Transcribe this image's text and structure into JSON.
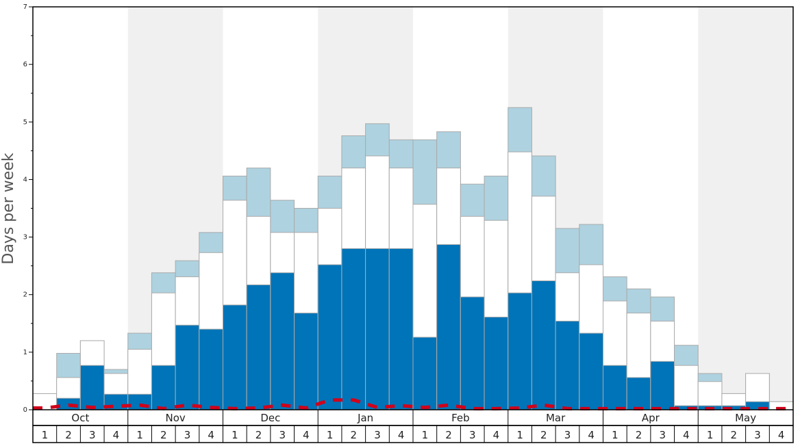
{
  "chart_data": {
    "type": "bar",
    "ylabel": "Days per week",
    "ylim": [
      0,
      7
    ],
    "y_ticks": [
      0,
      1,
      2,
      3,
      4,
      5,
      6,
      7
    ],
    "months": [
      "Oct",
      "Nov",
      "Dec",
      "Jan",
      "Feb",
      "Mar",
      "Apr",
      "May"
    ],
    "week_labels": [
      "1",
      "2",
      "3",
      "4",
      "1",
      "2",
      "3",
      "4",
      "1",
      "2",
      "3",
      "4",
      "1",
      "2",
      "3",
      "4",
      "1",
      "2",
      "3",
      "4",
      "1",
      "2",
      "3",
      "4",
      "1",
      "2",
      "3",
      "4",
      "1",
      "2",
      "3",
      "4"
    ],
    "colors": {
      "dark_blue": "#0074b8",
      "light_blue": "#aed2e0",
      "white_bar": "#ffffff",
      "shade": "#f0f0f0",
      "dashed_line": "#d0021b"
    },
    "series": [
      {
        "key": "dark_blue",
        "values": [
          0.0,
          0.2,
          0.77,
          0.27,
          0.27,
          0.77,
          1.47,
          1.4,
          1.82,
          2.17,
          2.38,
          1.68,
          2.52,
          2.8,
          2.8,
          2.8,
          1.26,
          2.87,
          1.96,
          1.61,
          2.03,
          2.24,
          1.54,
          1.33,
          0.77,
          0.56,
          0.84,
          0.07,
          0.07,
          0.07,
          0.14,
          0.0
        ]
      },
      {
        "key": "white_bar",
        "values": [
          0.28,
          0.56,
          1.2,
          0.63,
          1.05,
          2.03,
          2.31,
          2.73,
          3.64,
          3.36,
          3.08,
          3.08,
          3.5,
          4.2,
          4.41,
          4.2,
          3.57,
          4.2,
          3.36,
          3.29,
          4.48,
          3.71,
          2.38,
          2.52,
          1.89,
          1.68,
          1.54,
          0.77,
          0.49,
          0.28,
          0.63,
          0.14
        ]
      },
      {
        "key": "light_blue",
        "values": [
          0.28,
          0.98,
          1.2,
          0.7,
          1.33,
          2.38,
          2.59,
          3.08,
          4.06,
          4.2,
          3.64,
          3.5,
          4.06,
          4.76,
          4.97,
          4.69,
          4.69,
          4.83,
          3.92,
          4.06,
          5.25,
          4.41,
          3.15,
          3.22,
          2.31,
          2.1,
          1.96,
          1.12,
          0.63,
          0.28,
          0.63,
          0.14
        ]
      },
      {
        "key": "dashed_line",
        "values": [
          0.03,
          0.08,
          0.04,
          0.06,
          0.08,
          0.02,
          0.08,
          0.04,
          0.02,
          0.03,
          0.08,
          0.03,
          0.17,
          0.17,
          0.04,
          0.07,
          0.04,
          0.08,
          0.02,
          0.02,
          0.03,
          0.08,
          0.02,
          0.02,
          0.02,
          0.02,
          0.02,
          0.02,
          0.02,
          0.02,
          0.02,
          0.02
        ]
      }
    ]
  }
}
